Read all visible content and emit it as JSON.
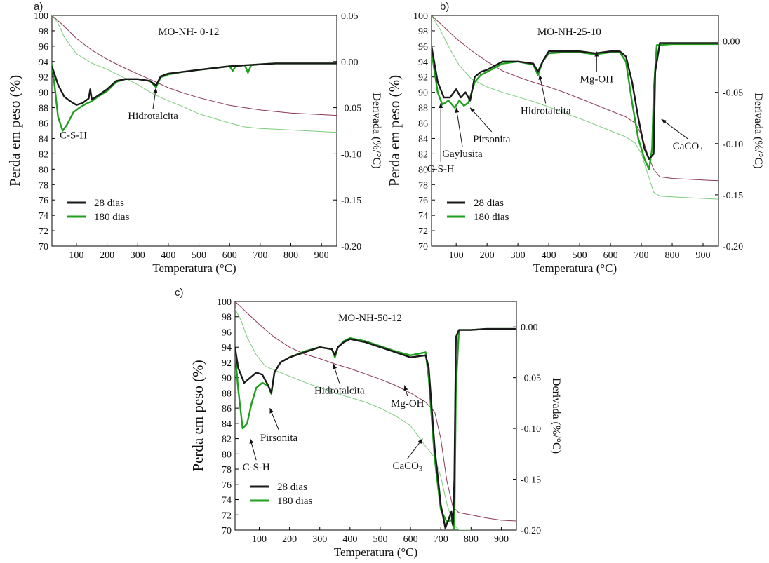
{
  "colors": {
    "series_28": "#1a1a1a",
    "series_180": "#1fa01f",
    "tg_28": "#8b3a52",
    "tg_180": "#7ccc7c",
    "axis": "#000000"
  },
  "chart_data": [
    {
      "panel": "a)",
      "type": "line",
      "title": "MO-NH- 0-12",
      "xlabel": "Temperatura (°C)",
      "ylabel": "Perda em peso (%)",
      "y2label": "Derivada (%/°C)",
      "xlim": [
        20,
        950
      ],
      "ylim": [
        70,
        100
      ],
      "y2lim": [
        -0.2,
        0.05
      ],
      "xticks": [
        100,
        200,
        300,
        400,
        500,
        600,
        700,
        800,
        900
      ],
      "yticks": [
        70,
        72,
        74,
        76,
        78,
        80,
        82,
        84,
        86,
        88,
        90,
        92,
        94,
        96,
        98,
        100
      ],
      "y2ticks": [
        {
          "v": 0.05,
          "t": "0.05"
        },
        {
          "v": 0.0,
          "t": "0.00"
        },
        {
          "v": -0.05,
          "t": "-0.05"
        },
        {
          "v": -0.1,
          "t": "-0.10"
        },
        {
          "v": -0.15,
          "t": "-0.15"
        },
        {
          "v": -0.2,
          "t": "-0.20"
        }
      ],
      "legend": {
        "position": "bottom-left",
        "entries": [
          "28 dias",
          "180 dias"
        ]
      },
      "tg_series": [
        {
          "name": "28 dias",
          "x": [
            20,
            60,
            100,
            150,
            200,
            250,
            300,
            350,
            400,
            450,
            500,
            550,
            600,
            650,
            700,
            750,
            800,
            850,
            900,
            950
          ],
          "y": [
            100,
            98.6,
            97.0,
            95.5,
            94.3,
            93.3,
            92.4,
            91.5,
            90.6,
            89.9,
            89.3,
            88.8,
            88.3,
            88.0,
            87.7,
            87.5,
            87.3,
            87.2,
            87.1,
            87.0
          ]
        },
        {
          "name": "180 dias",
          "x": [
            20,
            40,
            60,
            100,
            150,
            200,
            250,
            300,
            350,
            400,
            450,
            500,
            550,
            600,
            650,
            700,
            750,
            800,
            850,
            900,
            950
          ],
          "y": [
            100,
            99.0,
            97.2,
            95.0,
            93.8,
            93.0,
            92.0,
            91.0,
            89.8,
            88.9,
            88.1,
            87.2,
            86.6,
            86.0,
            85.5,
            85.3,
            85.2,
            85.1,
            85.0,
            84.9,
            84.8
          ]
        }
      ],
      "dtg_series": [
        {
          "name": "28 dias",
          "x": [
            20,
            40,
            60,
            80,
            100,
            120,
            140,
            145,
            150,
            170,
            200,
            230,
            260,
            300,
            340,
            360,
            375,
            400,
            450,
            500,
            550,
            600,
            650,
            700,
            750,
            800,
            850,
            900,
            950
          ],
          "y": [
            -0.005,
            -0.025,
            -0.038,
            -0.043,
            -0.047,
            -0.045,
            -0.04,
            -0.03,
            -0.041,
            -0.037,
            -0.03,
            -0.021,
            -0.019,
            -0.019,
            -0.021,
            -0.026,
            -0.016,
            -0.013,
            -0.011,
            -0.009,
            -0.007,
            -0.005,
            -0.004,
            -0.003,
            -0.002,
            -0.002,
            -0.002,
            -0.002,
            -0.002
          ]
        },
        {
          "name": "180 dias",
          "x": [
            20,
            30,
            40,
            55,
            70,
            90,
            110,
            130,
            150,
            170,
            200,
            230,
            260,
            300,
            340,
            360,
            375,
            400,
            450,
            500,
            550,
            600,
            610,
            620,
            650,
            660,
            670,
            700,
            750,
            800,
            850,
            900,
            950
          ],
          "y": [
            -0.003,
            -0.03,
            -0.06,
            -0.075,
            -0.068,
            -0.055,
            -0.05,
            -0.046,
            -0.043,
            -0.038,
            -0.032,
            -0.022,
            -0.019,
            -0.019,
            -0.021,
            -0.028,
            -0.017,
            -0.014,
            -0.011,
            -0.009,
            -0.007,
            -0.005,
            -0.01,
            -0.005,
            -0.004,
            -0.012,
            -0.004,
            -0.003,
            -0.002,
            -0.002,
            -0.002,
            -0.002,
            -0.002
          ]
        }
      ],
      "annotations": [
        {
          "text": "C-S-H",
          "x": 90,
          "y": 84
        },
        {
          "text": "Hidrotalcita",
          "x": 350,
          "y": 86.5,
          "arrow_to": [
            360,
            90.6
          ]
        }
      ]
    },
    {
      "panel": "b)",
      "type": "line",
      "title": "MO-NH-25-10",
      "xlabel": "Temperatura (°C)",
      "ylabel": "Perda em peso (%)",
      "y2label": "Derivada (%/°C)",
      "xlim": [
        20,
        950
      ],
      "ylim": [
        70,
        100
      ],
      "y2lim": [
        -0.2,
        0.025
      ],
      "xticks": [
        100,
        200,
        300,
        400,
        500,
        600,
        700,
        800,
        900
      ],
      "yticks": [
        70,
        72,
        74,
        76,
        78,
        80,
        82,
        84,
        86,
        88,
        90,
        92,
        94,
        96,
        98,
        100
      ],
      "y2ticks": [
        {
          "v": 0.0,
          "t": "0.00"
        },
        {
          "v": -0.05,
          "t": "-0.05"
        },
        {
          "v": -0.1,
          "t": "-0.10"
        },
        {
          "v": -0.15,
          "t": "-0.15"
        },
        {
          "v": -0.2,
          "t": "-0.20"
        }
      ],
      "legend": {
        "position": "bottom-left",
        "entries": [
          "28 dias",
          "180 dias"
        ]
      },
      "tg_series": [
        {
          "name": "28 dias",
          "x": [
            20,
            60,
            100,
            150,
            200,
            250,
            300,
            350,
            400,
            450,
            500,
            550,
            600,
            650,
            680,
            700,
            720,
            740,
            760,
            800,
            850,
            900,
            950
          ],
          "y": [
            100,
            98.5,
            97.0,
            95.4,
            94.0,
            92.8,
            92.0,
            91.3,
            90.7,
            90.0,
            89.2,
            88.4,
            87.6,
            86.8,
            86.0,
            84.5,
            82.0,
            80.0,
            79.0,
            78.8,
            78.7,
            78.6,
            78.5
          ]
        },
        {
          "name": "180 dias",
          "x": [
            20,
            50,
            80,
            110,
            150,
            200,
            250,
            300,
            350,
            400,
            450,
            500,
            550,
            600,
            650,
            680,
            700,
            720,
            740,
            760,
            800,
            850,
            900,
            950
          ],
          "y": [
            100,
            98.0,
            95.6,
            93.5,
            91.7,
            90.7,
            90.0,
            89.4,
            88.8,
            88.1,
            87.3,
            86.6,
            85.8,
            85.0,
            84.2,
            83.4,
            82.0,
            79.5,
            77.0,
            76.5,
            76.4,
            76.3,
            76.2,
            76.1
          ]
        }
      ],
      "dtg_series": [
        {
          "name": "28 dias",
          "x": [
            20,
            40,
            60,
            80,
            100,
            115,
            130,
            145,
            160,
            180,
            200,
            250,
            300,
            350,
            365,
            380,
            400,
            450,
            500,
            550,
            600,
            630,
            650,
            670,
            690,
            710,
            725,
            740,
            745,
            760,
            800,
            850,
            900,
            950
          ],
          "y": [
            -0.005,
            -0.04,
            -0.055,
            -0.055,
            -0.047,
            -0.055,
            -0.05,
            -0.058,
            -0.035,
            -0.03,
            -0.028,
            -0.02,
            -0.02,
            -0.022,
            -0.03,
            -0.02,
            -0.01,
            -0.01,
            -0.01,
            -0.012,
            -0.01,
            -0.01,
            -0.015,
            -0.04,
            -0.075,
            -0.105,
            -0.115,
            -0.11,
            -0.03,
            -0.002,
            -0.002,
            -0.002,
            -0.002,
            -0.002
          ]
        },
        {
          "name": "180 dias",
          "x": [
            20,
            40,
            55,
            75,
            95,
            110,
            125,
            140,
            160,
            180,
            200,
            250,
            300,
            350,
            365,
            380,
            400,
            450,
            500,
            550,
            600,
            630,
            650,
            670,
            690,
            710,
            725,
            735,
            740,
            750,
            800,
            850,
            900,
            950
          ],
          "y": [
            -0.01,
            -0.05,
            -0.062,
            -0.058,
            -0.065,
            -0.058,
            -0.063,
            -0.06,
            -0.04,
            -0.033,
            -0.03,
            -0.022,
            -0.02,
            -0.023,
            -0.033,
            -0.02,
            -0.012,
            -0.011,
            -0.011,
            -0.013,
            -0.011,
            -0.011,
            -0.02,
            -0.06,
            -0.095,
            -0.115,
            -0.125,
            -0.105,
            -0.05,
            -0.004,
            -0.003,
            -0.003,
            -0.003,
            -0.003
          ]
        }
      ],
      "annotations": [
        {
          "text": "C-S-H",
          "x": 50,
          "y": 79.6,
          "arrow_to": [
            50,
            88.6
          ]
        },
        {
          "text": "Gaylusita",
          "x": 120,
          "y": 81.6,
          "arrow_to": [
            100,
            88.0
          ]
        },
        {
          "text": "Pirsonita",
          "x": 215,
          "y": 83.5,
          "arrow_to": [
            145,
            88.0
          ]
        },
        {
          "text": "Hidrotalcita",
          "x": 390,
          "y": 87.2,
          "arrow_to": [
            370,
            92.3
          ]
        },
        {
          "text": "Mg-OH",
          "x": 555,
          "y": 91.3,
          "arrow_to": [
            555,
            95.3
          ]
        },
        {
          "text": "CaCO",
          "sub": "3",
          "x": 850,
          "y": 82.6,
          "arrow_to": [
            765,
            86.5
          ]
        }
      ]
    },
    {
      "panel": "c)",
      "type": "line",
      "title": "MO-NH-50-12",
      "xlabel": "Temperatura (°C)",
      "ylabel": "Perda em peso (%)",
      "y2label": "Derivada (%/°C)",
      "xlim": [
        20,
        950
      ],
      "ylim": [
        70,
        100
      ],
      "y2lim": [
        -0.2,
        0.025
      ],
      "xticks": [
        100,
        200,
        300,
        400,
        500,
        600,
        700,
        800,
        900
      ],
      "yticks": [
        70,
        72,
        74,
        76,
        78,
        80,
        82,
        84,
        86,
        88,
        90,
        92,
        94,
        96,
        98,
        100
      ],
      "y2ticks": [
        {
          "v": 0.0,
          "t": "0.00"
        },
        {
          "v": -0.05,
          "t": "-0.05"
        },
        {
          "v": -0.1,
          "t": "-0.10"
        },
        {
          "v": -0.15,
          "t": "-0.15"
        },
        {
          "v": -0.2,
          "t": "-0.20"
        }
      ],
      "legend": {
        "position": "bottom-left",
        "entries": [
          "28 dias",
          "180 dias"
        ]
      },
      "tg_series": [
        {
          "name": "28 dias",
          "x": [
            20,
            60,
            100,
            150,
            200,
            250,
            300,
            350,
            400,
            450,
            500,
            550,
            600,
            650,
            680,
            700,
            720,
            740,
            760,
            800,
            850,
            900,
            950
          ],
          "y": [
            100,
            98.5,
            97.0,
            95.3,
            94.0,
            93.1,
            92.5,
            91.8,
            91.2,
            90.5,
            89.8,
            89.0,
            88.0,
            86.8,
            85.5,
            82.0,
            76.5,
            73.0,
            72.3,
            72.0,
            71.6,
            71.3,
            71.2
          ]
        },
        {
          "name": "180 dias",
          "x": [
            20,
            40,
            60,
            90,
            120,
            150,
            200,
            250,
            300,
            350,
            400,
            450,
            500,
            550,
            600,
            650,
            680,
            700,
            720,
            740,
            760,
            800
          ],
          "y": [
            99.0,
            97.5,
            95.3,
            93.0,
            91.5,
            91.0,
            90.2,
            89.4,
            88.7,
            88.0,
            87.4,
            86.8,
            86.0,
            85.0,
            83.7,
            81.0,
            79.5,
            77.0,
            73.5,
            70.8,
            70.0,
            70.0
          ]
        }
      ],
      "dtg_series": [
        {
          "name": "28 dias",
          "x": [
            20,
            30,
            50,
            70,
            90,
            110,
            130,
            140,
            150,
            170,
            200,
            250,
            300,
            340,
            350,
            360,
            380,
            400,
            450,
            500,
            550,
            600,
            650,
            660,
            680,
            700,
            715,
            725,
            735,
            740,
            745,
            750,
            760,
            800,
            850,
            900,
            950
          ],
          "y": [
            -0.02,
            -0.04,
            -0.055,
            -0.05,
            -0.045,
            -0.047,
            -0.058,
            -0.065,
            -0.045,
            -0.035,
            -0.03,
            -0.025,
            -0.02,
            -0.022,
            -0.028,
            -0.02,
            -0.015,
            -0.012,
            -0.015,
            -0.02,
            -0.025,
            -0.03,
            -0.028,
            -0.04,
            -0.12,
            -0.175,
            -0.198,
            -0.19,
            -0.182,
            -0.195,
            -0.15,
            -0.01,
            -0.003,
            -0.003,
            -0.002,
            -0.002,
            -0.002
          ]
        },
        {
          "name": "180 dias",
          "x": [
            20,
            30,
            45,
            60,
            75,
            90,
            110,
            130,
            140,
            150,
            170,
            200,
            250,
            300,
            340,
            350,
            360,
            380,
            400,
            450,
            500,
            550,
            600,
            650,
            660,
            680,
            700,
            720,
            735,
            745,
            750,
            760,
            800,
            850,
            900,
            950
          ],
          "y": [
            -0.025,
            -0.06,
            -0.1,
            -0.095,
            -0.075,
            -0.06,
            -0.055,
            -0.058,
            -0.066,
            -0.045,
            -0.035,
            -0.03,
            -0.024,
            -0.02,
            -0.022,
            -0.03,
            -0.02,
            -0.014,
            -0.011,
            -0.014,
            -0.019,
            -0.024,
            -0.028,
            -0.025,
            -0.05,
            -0.13,
            -0.18,
            -0.192,
            -0.19,
            -0.2,
            -0.06,
            -0.003,
            -0.003,
            -0.002,
            -0.002,
            -0.002
          ]
        }
      ],
      "annotations": [
        {
          "text": "Pirsonita",
          "x": 165,
          "y": 81.7,
          "arrow_to": [
            135,
            86.0
          ]
        },
        {
          "text": "Hidrotalcita",
          "x": 365,
          "y": 87.9,
          "arrow_to": [
            345,
            91.8
          ]
        },
        {
          "text": "Mg-OH",
          "x": 590,
          "y": 86.2,
          "arrow_to": [
            580,
            89.0
          ]
        },
        {
          "text": "C-S-H",
          "x": 90,
          "y": 77.8,
          "arrow_to": [
            70,
            82.0
          ]
        },
        {
          "text": "CaCO",
          "sub": "3",
          "x": 590,
          "y": 78.0,
          "arrow_to": [
            640,
            82.0
          ]
        }
      ]
    }
  ]
}
